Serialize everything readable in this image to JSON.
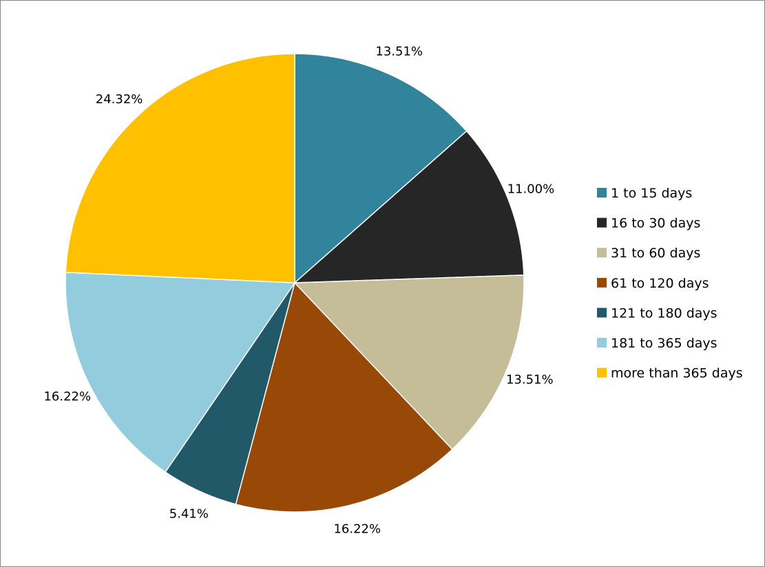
{
  "chart_data": {
    "type": "pie",
    "title": "",
    "legend_position": "right",
    "slices": [
      {
        "label": "1 to 15 days",
        "value": 13.51,
        "value_label": "13.51%",
        "color": "#31849B"
      },
      {
        "label": "16 to 30 days",
        "value": 11.0,
        "value_label": "11.00%",
        "color": "#262626"
      },
      {
        "label": "31 to 60 days",
        "value": 13.51,
        "value_label": "13.51%",
        "color": "#C4BD97"
      },
      {
        "label": "61 to 120 days",
        "value": 16.22,
        "value_label": "16.22%",
        "color": "#984807"
      },
      {
        "label": "121 to 180 days",
        "value": 5.41,
        "value_label": "5.41%",
        "color": "#215968"
      },
      {
        "label": "181 to 365 days",
        "value": 16.22,
        "value_label": "16.22%",
        "color": "#93CDDD"
      },
      {
        "label": "more than 365 days",
        "value": 24.32,
        "value_label": "24.32%",
        "color": "#FFC000"
      }
    ]
  }
}
